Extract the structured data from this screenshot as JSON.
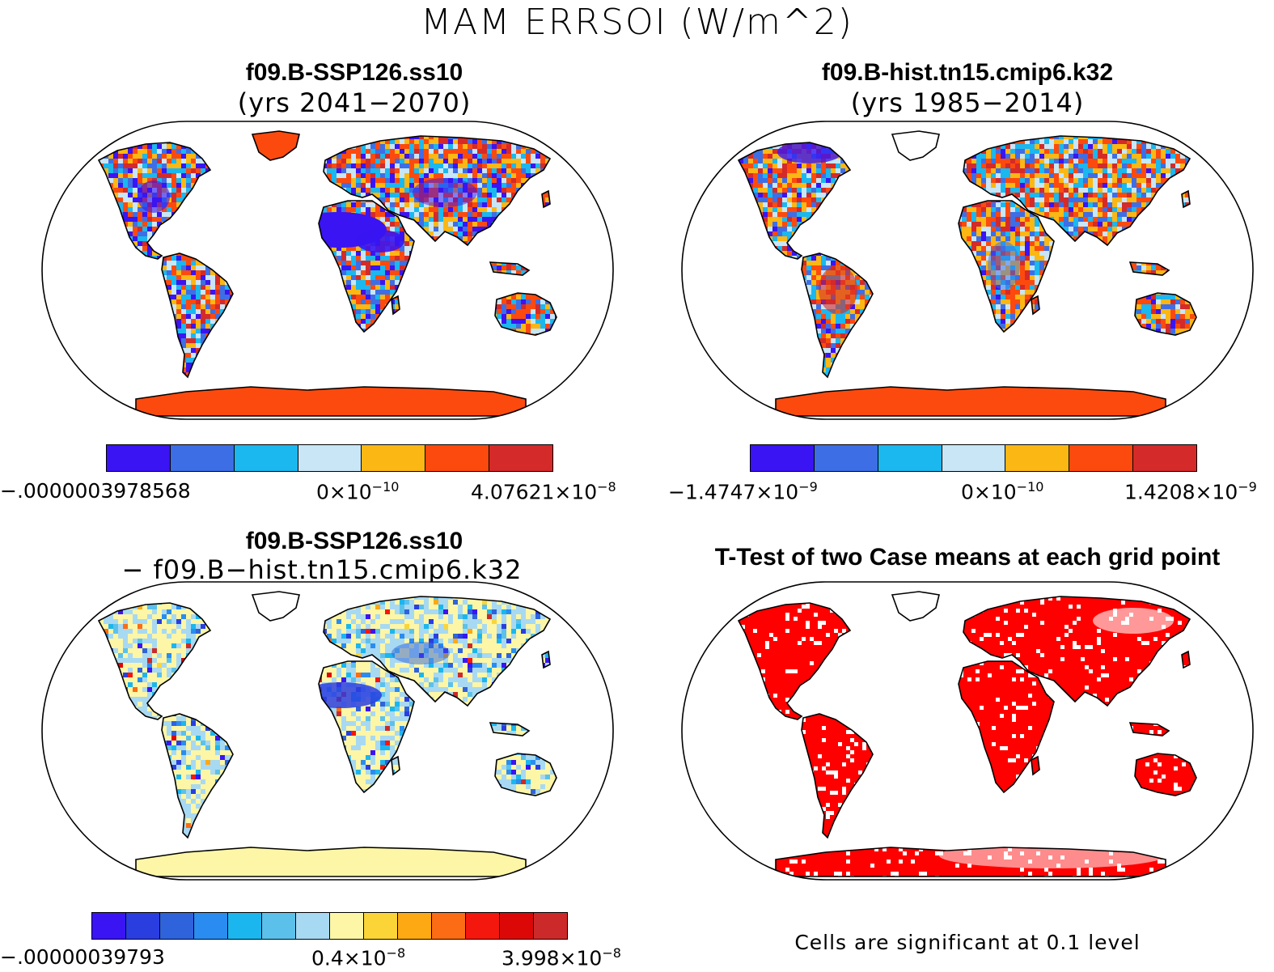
{
  "title": "MAM ERRSOI (W/m^2)",
  "panels": [
    {
      "id": "p1",
      "title_line1": "f09.B-SSP126.ss10",
      "title_line2": "(yrs 2041−2070)",
      "colorbar": {
        "colors": [
          "#3a14f2",
          "#3e6ee5",
          "#1bb7ef",
          "#c8e6f6",
          "#fbb714",
          "#fc4a0e",
          "#d42a2a"
        ],
        "label_min": "−.0000003978568",
        "label_mid_base": "0×10",
        "label_mid_exp": "−10",
        "label_max_base": "4.07621×10",
        "label_max_exp": "−8"
      }
    },
    {
      "id": "p2",
      "title_line1": "f09.B-hist.tn15.cmip6.k32",
      "title_line2": "(yrs 1985−2014)",
      "colorbar": {
        "colors": [
          "#3a14f2",
          "#3e6ee5",
          "#1bb7ef",
          "#c8e6f6",
          "#fbb714",
          "#fc4a0e",
          "#d42a2a"
        ],
        "label_min_base": "−1.4747×10",
        "label_min_exp": "−9",
        "label_mid_base": "0×10",
        "label_mid_exp": "−10",
        "label_max_base": "1.4208×10",
        "label_max_exp": "−9"
      }
    },
    {
      "id": "p3",
      "title_line1": "f09.B-SSP126.ss10",
      "title_line2": "− f09.B−hist.tn15.cmip6.k32",
      "colorbar": {
        "colors": [
          "#3a14f2",
          "#2a3ee0",
          "#2f63dc",
          "#2a8cf0",
          "#1cb6ee",
          "#5cc1ea",
          "#a8d9f2",
          "#fcf6a6",
          "#fbd438",
          "#fca914",
          "#fb6c14",
          "#f4170e",
          "#dc0808",
          "#cc2a2a"
        ],
        "label_min": "−.00000039793",
        "label_mid_base": "0.4×10",
        "label_mid_exp": "−8",
        "label_max_base": "3.998×10",
        "label_max_exp": "−8"
      }
    },
    {
      "id": "p4",
      "title_line1": "T-Test of two Case means at each grid point",
      "footnote": "Cells are significant at 0.1 level",
      "fill": "#ff0000"
    }
  ]
}
